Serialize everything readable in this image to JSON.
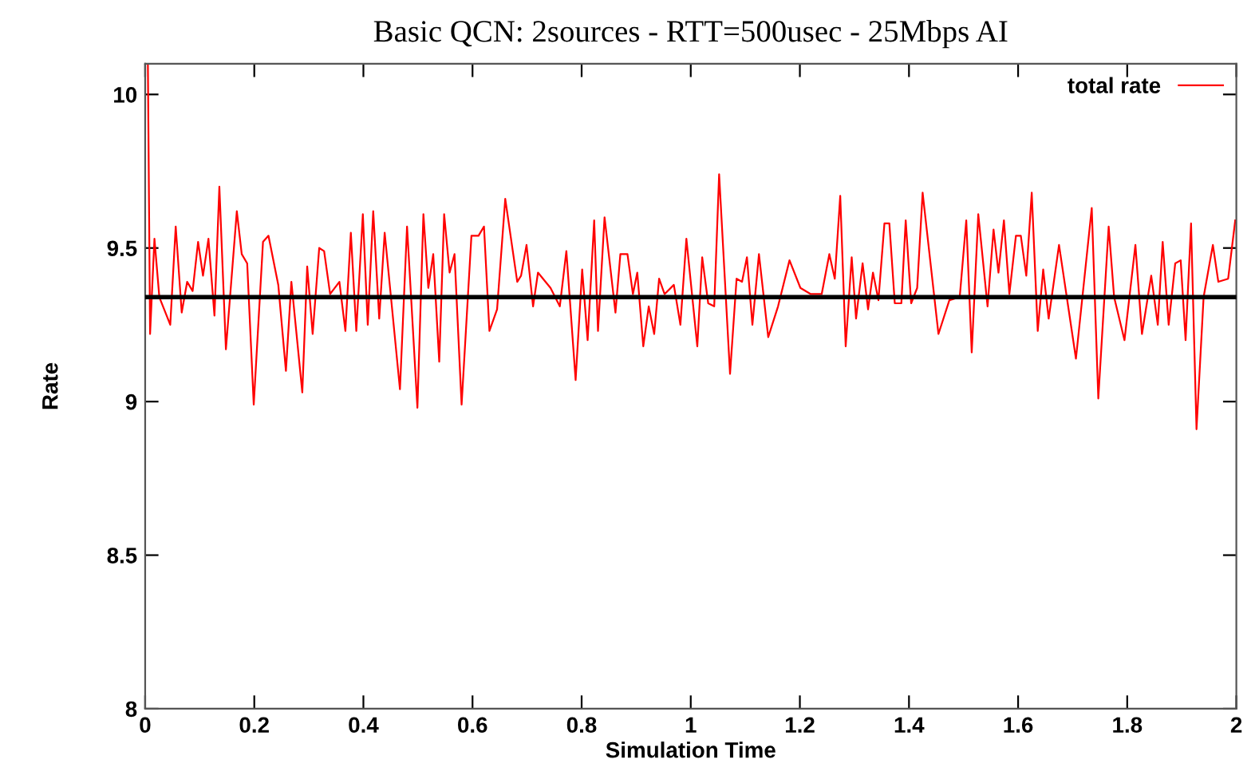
{
  "chart_data": {
    "type": "line",
    "title": "Basic QCN: 2sources - RTT=500usec - 25Mbps AI",
    "xlabel": "Simulation Time",
    "ylabel": "Rate",
    "xlim": [
      0,
      2
    ],
    "xticks": [
      0,
      0.2,
      0.4,
      0.6,
      0.8,
      1,
      1.2,
      1.4,
      1.6,
      1.8,
      2
    ],
    "ylim": [
      8,
      10.1
    ],
    "yticks": [
      8,
      8.5,
      9,
      9.5,
      10
    ],
    "grid": false,
    "legend": "top right",
    "marker": "none",
    "line_style": "solid",
    "ref_lines": [
      {
        "axis": "y",
        "value": 9.34,
        "color": "#000000",
        "line_style": "solid"
      }
    ],
    "series": [
      {
        "name": "total rate",
        "color": "#ff0000",
        "x": [
          0.005,
          0.009,
          0.017,
          0.026,
          0.046,
          0.056,
          0.067,
          0.077,
          0.087,
          0.097,
          0.106,
          0.116,
          0.127,
          0.136,
          0.148,
          0.168,
          0.177,
          0.187,
          0.199,
          0.216,
          0.226,
          0.244,
          0.258,
          0.268,
          0.288,
          0.297,
          0.307,
          0.319,
          0.328,
          0.339,
          0.356,
          0.367,
          0.377,
          0.387,
          0.399,
          0.408,
          0.418,
          0.429,
          0.439,
          0.467,
          0.48,
          0.499,
          0.51,
          0.519,
          0.528,
          0.539,
          0.548,
          0.558,
          0.567,
          0.58,
          0.598,
          0.611,
          0.621,
          0.631,
          0.645,
          0.66,
          0.682,
          0.689,
          0.699,
          0.711,
          0.72,
          0.743,
          0.76,
          0.772,
          0.789,
          0.801,
          0.811,
          0.823,
          0.83,
          0.842,
          0.862,
          0.871,
          0.884,
          0.894,
          0.902,
          0.913,
          0.923,
          0.933,
          0.942,
          0.952,
          0.969,
          0.981,
          0.992,
          1.012,
          1.021,
          1.032,
          1.043,
          1.052,
          1.072,
          1.084,
          1.094,
          1.103,
          1.113,
          1.125,
          1.142,
          1.16,
          1.181,
          1.201,
          1.22,
          1.24,
          1.254,
          1.264,
          1.274,
          1.284,
          1.295,
          1.303,
          1.315,
          1.325,
          1.334,
          1.344,
          1.355,
          1.364,
          1.374,
          1.386,
          1.394,
          1.404,
          1.415,
          1.425,
          1.454,
          1.474,
          1.493,
          1.505,
          1.515,
          1.527,
          1.544,
          1.555,
          1.564,
          1.574,
          1.584,
          1.596,
          1.605,
          1.615,
          1.625,
          1.636,
          1.646,
          1.656,
          1.675,
          1.706,
          1.735,
          1.747,
          1.766,
          1.776,
          1.795,
          1.815,
          1.827,
          1.844,
          1.856,
          1.865,
          1.876,
          1.888,
          1.898,
          1.907,
          1.917,
          1.927,
          1.94,
          1.957,
          1.967,
          1.985,
          1.998
        ],
        "values": [
          10.1,
          9.22,
          9.53,
          9.34,
          9.25,
          9.57,
          9.29,
          9.39,
          9.36,
          9.52,
          9.41,
          9.53,
          9.28,
          9.7,
          9.17,
          9.62,
          9.48,
          9.45,
          8.99,
          9.52,
          9.54,
          9.38,
          9.1,
          9.39,
          9.03,
          9.44,
          9.22,
          9.5,
          9.49,
          9.35,
          9.39,
          9.23,
          9.55,
          9.23,
          9.61,
          9.25,
          9.62,
          9.27,
          9.55,
          9.04,
          9.57,
          8.98,
          9.61,
          9.37,
          9.48,
          9.13,
          9.61,
          9.42,
          9.48,
          8.99,
          9.54,
          9.54,
          9.57,
          9.23,
          9.3,
          9.66,
          9.39,
          9.41,
          9.51,
          9.31,
          9.42,
          9.37,
          9.31,
          9.49,
          9.07,
          9.43,
          9.2,
          9.59,
          9.23,
          9.6,
          9.29,
          9.48,
          9.48,
          9.35,
          9.42,
          9.18,
          9.31,
          9.22,
          9.4,
          9.35,
          9.38,
          9.25,
          9.53,
          9.18,
          9.47,
          9.32,
          9.31,
          9.74,
          9.09,
          9.4,
          9.39,
          9.47,
          9.25,
          9.48,
          9.21,
          9.31,
          9.46,
          9.37,
          9.35,
          9.35,
          9.48,
          9.4,
          9.67,
          9.18,
          9.47,
          9.27,
          9.45,
          9.3,
          9.42,
          9.33,
          9.58,
          9.58,
          9.32,
          9.32,
          9.59,
          9.32,
          9.37,
          9.68,
          9.22,
          9.33,
          9.34,
          9.59,
          9.16,
          9.61,
          9.31,
          9.56,
          9.42,
          9.59,
          9.35,
          9.54,
          9.54,
          9.41,
          9.68,
          9.23,
          9.43,
          9.27,
          9.51,
          9.14,
          9.63,
          9.01,
          9.57,
          9.34,
          9.2,
          9.51,
          9.22,
          9.41,
          9.25,
          9.52,
          9.25,
          9.45,
          9.46,
          9.2,
          9.58,
          8.91,
          9.34,
          9.51,
          9.39,
          9.4,
          9.59
        ]
      }
    ]
  }
}
